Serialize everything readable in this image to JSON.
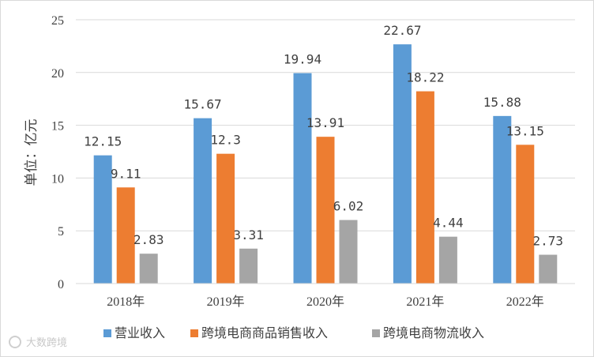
{
  "chart_data": {
    "type": "bar",
    "title": "",
    "xlabel": "",
    "ylabel": "单位：亿元",
    "ylim": [
      0,
      25
    ],
    "yticks": [
      0,
      5,
      10,
      15,
      20,
      25
    ],
    "grid": true,
    "legend_position": "bottom",
    "categories": [
      "2018年",
      "2019年",
      "2020年",
      "2021年",
      "2022年"
    ],
    "series": [
      {
        "name": "营业收入",
        "color": "#5b9bd5",
        "values": [
          12.15,
          15.67,
          19.94,
          22.67,
          15.88
        ],
        "labels": [
          "12.15",
          "15.67",
          "19.94",
          "22.67",
          "15.88"
        ]
      },
      {
        "name": "跨境电商商品销售收入",
        "color": "#ed7d31",
        "values": [
          9.11,
          12.3,
          13.91,
          18.22,
          13.15
        ],
        "labels": [
          "9.11",
          "12.3",
          "13.91",
          "18.22",
          "13.15"
        ]
      },
      {
        "name": "跨境电商物流收入",
        "color": "#a5a5a5",
        "values": [
          2.83,
          3.31,
          6.02,
          4.44,
          2.73
        ],
        "labels": [
          "2.83",
          "3.31",
          "6.02",
          "4.44",
          "2.73"
        ]
      }
    ]
  },
  "watermark": {
    "text": "大数跨境"
  }
}
